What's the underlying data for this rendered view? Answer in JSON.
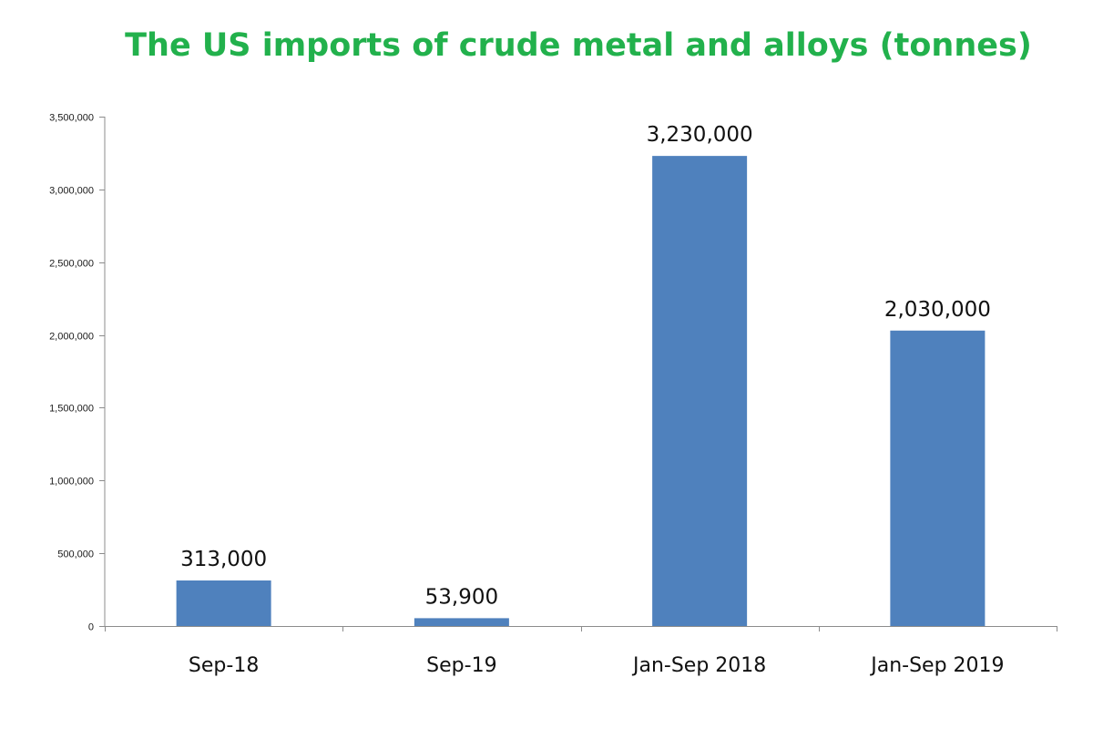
{
  "chart_data": {
    "type": "bar",
    "title": "The US imports of crude metal and alloys (tonnes)",
    "categories": [
      "Sep-18",
      "Sep-19",
      "Jan-Sep 2018",
      "Jan-Sep 2019"
    ],
    "values": [
      313000,
      53900,
      3230000,
      2030000
    ],
    "data_labels": [
      "313,000",
      "53,900",
      "3,230,000",
      "2,030,000"
    ],
    "ylim": [
      0,
      3500000
    ],
    "y_ticks": [
      0,
      500000,
      1000000,
      1500000,
      2000000,
      2500000,
      3000000,
      3500000
    ],
    "y_tick_labels": [
      "0",
      "500,000",
      "1,000,000",
      "1,500,000",
      "2,000,000",
      "2,500,000",
      "3,000,000",
      "3,500,000"
    ],
    "xlabel": "",
    "ylabel": "",
    "grid": false,
    "legend": "none",
    "bar_color": "#4f81bd",
    "title_color": "#22b14c"
  }
}
